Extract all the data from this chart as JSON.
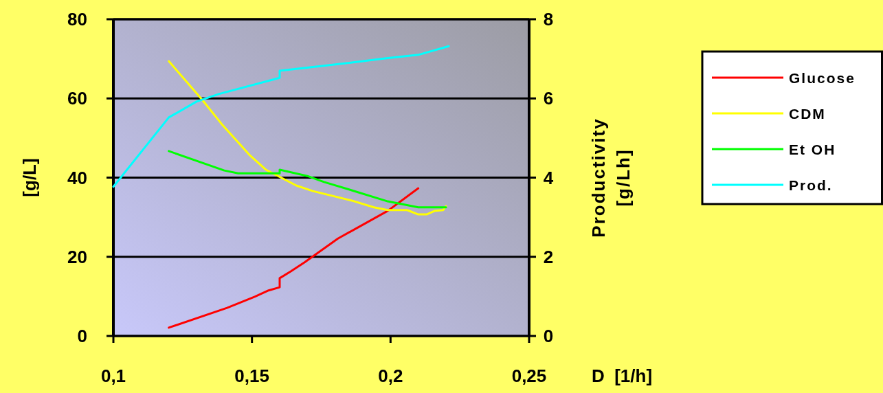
{
  "chart_data": {
    "type": "line",
    "xlabel": "D  [1/h]",
    "ylabel": "[g/L]",
    "y2label": "Productivity\n[g/Lh]",
    "xlim": [
      0.1,
      0.25
    ],
    "xticks": [
      {
        "value": 0.1,
        "label": "0,1"
      },
      {
        "value": 0.15,
        "label": "0,15"
      },
      {
        "value": 0.2,
        "label": "0,2"
      },
      {
        "value": 0.25,
        "label": "0,25"
      }
    ],
    "ylim": [
      0,
      80
    ],
    "yticks": [
      0,
      20,
      40,
      60,
      80
    ],
    "y2lim": [
      0,
      8
    ],
    "y2ticks": [
      0,
      2,
      4,
      6,
      8
    ],
    "grid": "y",
    "legend": "right",
    "line_style": "solid",
    "marker": "none",
    "series": [
      {
        "name": "Glucose",
        "color": "#ff0000",
        "x": [
          0.12,
          0.141,
          0.151,
          0.156,
          0.16,
          0.16,
          0.164,
          0.169,
          0.181,
          0.199,
          0.21
        ],
        "values": [
          2.1,
          7.1,
          9.9,
          11.5,
          12.3,
          14.6,
          16.3,
          18.6,
          24.6,
          31.6,
          37.3
        ]
      },
      {
        "name": "CDM",
        "color": "#ffff00",
        "x": [
          0.12,
          0.132,
          0.139,
          0.149,
          0.155,
          0.166,
          0.172,
          0.186,
          0.194,
          0.199,
          0.206,
          0.21,
          0.213,
          0.216,
          0.219,
          0.22
        ],
        "values": [
          69.4,
          59.7,
          53.6,
          45.8,
          42,
          38,
          36.6,
          34.2,
          32.5,
          31.8,
          31.8,
          30.7,
          30.7,
          31.6,
          31.8,
          32.8
        ]
      },
      {
        "name": "Et OH",
        "color": "#00ff00",
        "x": [
          0.12,
          0.14,
          0.145,
          0.16,
          0.16,
          0.17,
          0.176,
          0.186,
          0.199,
          0.21,
          0.22
        ],
        "values": [
          46.7,
          41.8,
          41.1,
          41.1,
          42,
          40.4,
          38.9,
          36.8,
          34,
          32.5,
          32.5
        ]
      },
      {
        "name": "Prod.",
        "color": "#00ffff",
        "axis": "y2",
        "x": [
          0.1,
          0.12,
          0.13,
          0.138,
          0.16,
          0.16,
          0.178,
          0.198,
          0.21,
          0.221
        ],
        "values": [
          3.77,
          5.52,
          5.92,
          6.11,
          6.52,
          6.7,
          6.84,
          7.01,
          7.1,
          7.32
        ]
      }
    ]
  }
}
